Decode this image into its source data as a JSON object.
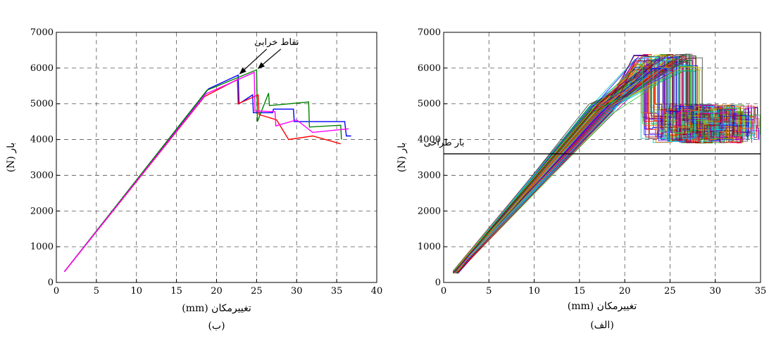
{
  "chart_data": [
    {
      "type": "line",
      "caption": "(ب)",
      "xlabel": "تغییرمکان (mm)",
      "ylabel": "بار (N)",
      "xlim": [
        0,
        40
      ],
      "ylim": [
        0,
        7000
      ],
      "xticks": [
        0,
        5,
        10,
        15,
        20,
        25,
        30,
        35,
        40
      ],
      "yticks": [
        0,
        1000,
        2000,
        3000,
        4000,
        5000,
        6000,
        7000
      ],
      "grid": true,
      "annotations": [
        {
          "text": "نقاط خرابی",
          "x": 27.5,
          "y": 6650,
          "arrows_to": [
            [
              22.9,
              5820
            ],
            [
              25.2,
              5970
            ]
          ]
        }
      ],
      "series": [
        {
          "color": "#0000ff",
          "points": [
            [
              1,
              300
            ],
            [
              19,
              5420
            ],
            [
              22.7,
              5800
            ],
            [
              22.8,
              5000
            ],
            [
              24.5,
              5250
            ],
            [
              24.6,
              4750
            ],
            [
              27,
              4750
            ],
            [
              27.1,
              4850
            ],
            [
              29.6,
              4850
            ],
            [
              29.7,
              4500
            ],
            [
              36,
              4500
            ],
            [
              36.2,
              4100
            ],
            [
              36.8,
              4100
            ]
          ]
        },
        {
          "color": "#008000",
          "points": [
            [
              1,
              300
            ],
            [
              18.8,
              5380
            ],
            [
              25,
              5950
            ],
            [
              25.1,
              4500
            ],
            [
              26.5,
              5300
            ],
            [
              26.6,
              4950
            ],
            [
              31.5,
              5050
            ],
            [
              31.6,
              4350
            ],
            [
              35.5,
              4400
            ],
            [
              35.6,
              4000
            ]
          ]
        },
        {
          "color": "#ff0000",
          "points": [
            [
              1,
              300
            ],
            [
              18.5,
              5200
            ],
            [
              22.6,
              5680
            ],
            [
              22.7,
              5000
            ],
            [
              25.2,
              5250
            ],
            [
              25.3,
              4700
            ],
            [
              27.5,
              4550
            ],
            [
              29,
              4000
            ],
            [
              32,
              4100
            ],
            [
              35.5,
              3880
            ]
          ]
        },
        {
          "color": "#ff00ff",
          "points": [
            [
              1,
              300
            ],
            [
              18.7,
              5280
            ],
            [
              24.7,
              5880
            ],
            [
              24.8,
              4800
            ],
            [
              27.3,
              4780
            ],
            [
              27.4,
              4380
            ],
            [
              30,
              4550
            ],
            [
              32,
              4200
            ],
            [
              36.5,
              4300
            ]
          ]
        }
      ]
    },
    {
      "type": "line",
      "caption": "(الف)",
      "xlabel": "تغییرمکان (mm)",
      "ylabel": "بار (N)",
      "xlim": [
        0,
        35
      ],
      "ylim": [
        0,
        7000
      ],
      "xticks": [
        0,
        5,
        10,
        15,
        20,
        25,
        30,
        35
      ],
      "yticks": [
        0,
        1000,
        2000,
        3000,
        4000,
        5000,
        6000,
        7000
      ],
      "grid": true,
      "reference_line": {
        "y": 3600,
        "label": "بار طراحی",
        "label_x": 2.3,
        "label_y": 3830
      },
      "series_colors": [
        "#0000ff",
        "#008000",
        "#ff0000",
        "#00bfbf",
        "#bf00bf",
        "#bfbf00",
        "#404040",
        "#ff6600",
        "#00ccff",
        "#6600cc",
        "#990000",
        "#33cc33"
      ],
      "series_count": 120,
      "trend": {
        "x_start": 1,
        "y_start": 250,
        "peak_x": [
          21,
          27
        ],
        "peak_y": [
          5900,
          6400
        ],
        "tail_y": [
          3900,
          5000
        ],
        "x_end": [
          28,
          35
        ]
      }
    }
  ]
}
